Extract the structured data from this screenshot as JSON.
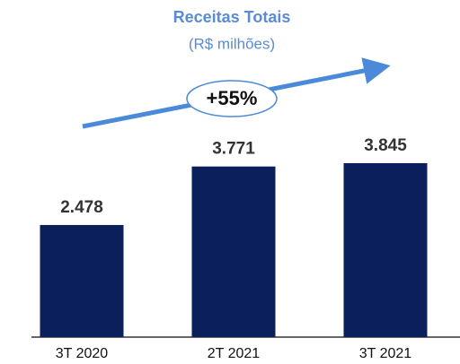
{
  "chart_data": {
    "type": "bar",
    "title": "Receitas Totais",
    "subtitle": "(R$ milhões)",
    "annotation": "+55%",
    "categories": [
      "3T 2020",
      "2T 2021",
      "3T 2021"
    ],
    "values": [
      2478,
      3771,
      3845
    ],
    "value_labels": [
      "2.478",
      "3.771",
      "3.845"
    ],
    "color": "#0a1f5c"
  }
}
